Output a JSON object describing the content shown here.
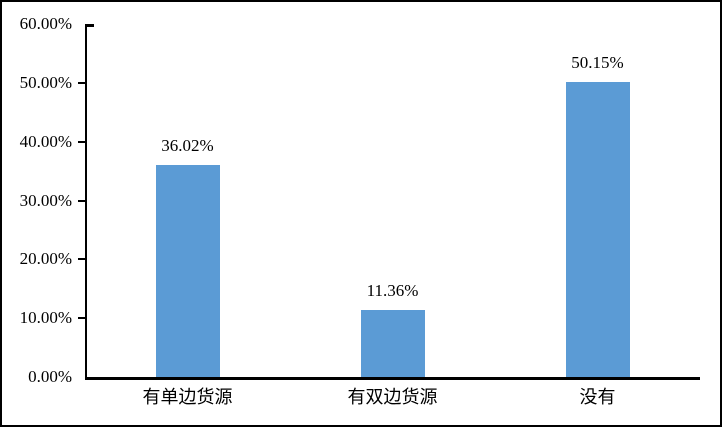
{
  "chart_data": {
    "type": "bar",
    "categories": [
      "有单边货源",
      "有双边货源",
      "没有"
    ],
    "values": [
      36.02,
      11.36,
      50.15
    ],
    "data_labels": [
      "36.02%",
      "11.36%",
      "50.15%"
    ],
    "title": "",
    "xlabel": "",
    "ylabel": "",
    "ylim": [
      0,
      60
    ],
    "y_tick_labels": [
      "60.00%",
      "50.00%",
      "40.00%",
      "30.00%",
      "20.00%",
      "10.00%",
      "0.00%"
    ],
    "y_tick_values": [
      60,
      50,
      40,
      30,
      20,
      10,
      0
    ],
    "grid": false,
    "legend": false,
    "colors": {
      "bar_fill": "#5B9BD5",
      "axis": "#000000",
      "text": "#000000",
      "background": "#FFFFFF",
      "frame_border": "#000000"
    }
  }
}
